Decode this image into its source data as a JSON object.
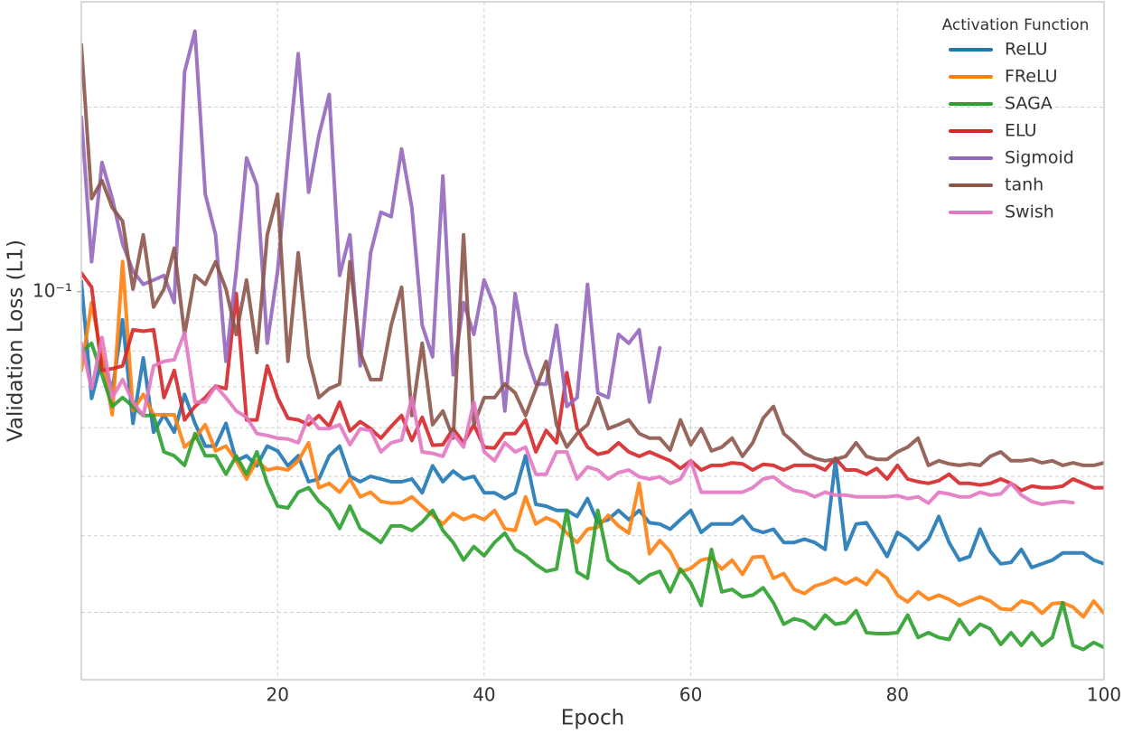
{
  "chart_data": {
    "type": "line",
    "xlabel": "Epoch",
    "ylabel": "Validation Loss (L1)",
    "legend_title": "Activation Function",
    "legend": "upper right",
    "yscale": "log",
    "grid": true,
    "xlim": [
      1,
      100
    ],
    "xticks": [
      20,
      40,
      60,
      80,
      100
    ],
    "ylim": [
      0.0233,
      0.297
    ],
    "yticks": [
      {
        "value": 0.1,
        "label": "10⁻¹"
      }
    ],
    "yminor": [
      0.03,
      0.04,
      0.05,
      0.06,
      0.07,
      0.08,
      0.09,
      0.2
    ],
    "x": [
      1,
      2,
      3,
      4,
      5,
      6,
      7,
      8,
      9,
      10,
      11,
      12,
      13,
      14,
      15,
      16,
      17,
      18,
      19,
      20,
      21,
      22,
      23,
      24,
      25,
      26,
      27,
      28,
      29,
      30,
      31,
      32,
      33,
      34,
      35,
      36,
      37,
      38,
      39,
      40,
      41,
      42,
      43,
      44,
      45,
      46,
      47,
      48,
      49,
      50,
      51,
      52,
      53,
      54,
      55,
      56,
      57,
      58,
      59,
      60,
      61,
      62,
      63,
      64,
      65,
      66,
      67,
      68,
      69,
      70,
      71,
      72,
      73,
      74,
      75,
      76,
      77,
      78,
      79,
      80,
      81,
      82,
      83,
      84,
      85,
      86,
      87,
      88,
      89,
      90,
      91,
      92,
      93,
      94,
      95,
      96,
      97,
      98,
      99,
      100
    ],
    "series": [
      {
        "name": "ReLU",
        "color": "#1f77b4",
        "values": [
          0.104,
          0.067,
          0.078,
          0.069,
          0.09,
          0.061,
          0.078,
          0.059,
          0.063,
          0.059,
          0.068,
          0.061,
          0.056,
          0.056,
          0.061,
          0.053,
          0.054,
          0.052,
          0.056,
          0.055,
          0.052,
          0.054,
          0.049,
          0.0495,
          0.054,
          0.056,
          0.05,
          0.049,
          0.05,
          0.0495,
          0.049,
          0.049,
          0.0495,
          0.047,
          0.052,
          0.049,
          0.051,
          0.0495,
          0.05,
          0.047,
          0.047,
          0.046,
          0.047,
          0.054,
          0.045,
          0.0447,
          0.044,
          0.044,
          0.043,
          0.046,
          0.042,
          0.0425,
          0.044,
          0.0425,
          0.044,
          0.042,
          0.0418,
          0.041,
          0.0425,
          0.044,
          0.0405,
          0.0418,
          0.0418,
          0.0418,
          0.043,
          0.041,
          0.0405,
          0.041,
          0.039,
          0.039,
          0.0395,
          0.039,
          0.038,
          0.053,
          0.038,
          0.0418,
          0.042,
          0.0395,
          0.037,
          0.0405,
          0.0395,
          0.038,
          0.0395,
          0.043,
          0.039,
          0.0365,
          0.037,
          0.041,
          0.0377,
          0.036,
          0.0362,
          0.038,
          0.0355,
          0.036,
          0.0365,
          0.0375,
          0.0375,
          0.0375,
          0.0365,
          0.036
        ]
      },
      {
        "name": "FReLU",
        "color": "#ff7f0e",
        "values": [
          0.0744,
          0.096,
          0.078,
          0.063,
          0.112,
          0.064,
          0.068,
          0.063,
          0.063,
          0.063,
          0.0558,
          0.0577,
          0.0607,
          0.055,
          0.056,
          0.053,
          0.0495,
          0.053,
          0.0512,
          0.0516,
          0.0512,
          0.053,
          0.0567,
          0.0479,
          0.0487,
          0.0471,
          0.0495,
          0.0463,
          0.0471,
          0.0455,
          0.0452,
          0.0453,
          0.0463,
          0.0447,
          0.0432,
          0.0418,
          0.0435,
          0.0425,
          0.0432,
          0.0425,
          0.044,
          0.0411,
          0.0408,
          0.0463,
          0.0418,
          0.0428,
          0.0421,
          0.0404,
          0.039,
          0.041,
          0.0413,
          0.0432,
          0.0415,
          0.0404,
          0.0487,
          0.0374,
          0.0393,
          0.0377,
          0.0349,
          0.0354,
          0.0365,
          0.0368,
          0.0353,
          0.0365,
          0.0346,
          0.0369,
          0.037,
          0.0341,
          0.0347,
          0.0327,
          0.0322,
          0.0331,
          0.0335,
          0.0341,
          0.0334,
          0.0341,
          0.0333,
          0.0351,
          0.0341,
          0.032,
          0.0312,
          0.0324,
          0.0315,
          0.032,
          0.0315,
          0.0308,
          0.0313,
          0.0318,
          0.0313,
          0.0304,
          0.0303,
          0.0313,
          0.031,
          0.0299,
          0.031,
          0.0311,
          0.0306,
          0.0295,
          0.0313,
          0.0299
        ]
      },
      {
        "name": "SAGA",
        "color": "#2ca02c",
        "values": [
          0.0796,
          0.0824,
          0.0732,
          0.065,
          0.0672,
          0.065,
          0.0628,
          0.0628,
          0.0548,
          0.054,
          0.0521,
          0.0587,
          0.054,
          0.054,
          0.0504,
          0.054,
          0.0504,
          0.0548,
          0.0487,
          0.0447,
          0.0444,
          0.0471,
          0.0479,
          0.0455,
          0.044,
          0.0411,
          0.0447,
          0.0411,
          0.0401,
          0.039,
          0.0415,
          0.0415,
          0.0408,
          0.0421,
          0.044,
          0.0408,
          0.039,
          0.0365,
          0.0384,
          0.0371,
          0.039,
          0.0404,
          0.038,
          0.0371,
          0.0359,
          0.035,
          0.0353,
          0.044,
          0.0349,
          0.0341,
          0.044,
          0.0365,
          0.0353,
          0.0347,
          0.0335,
          0.0345,
          0.035,
          0.0324,
          0.0353,
          0.0335,
          0.0308,
          0.038,
          0.0324,
          0.0327,
          0.0318,
          0.032,
          0.0329,
          0.0311,
          0.0287,
          0.0293,
          0.029,
          0.0282,
          0.0297,
          0.0287,
          0.0289,
          0.0302,
          0.0278,
          0.0277,
          0.0277,
          0.0278,
          0.0297,
          0.0273,
          0.0278,
          0.0273,
          0.0271,
          0.0292,
          0.0276,
          0.0287,
          0.0282,
          0.0266,
          0.0278,
          0.0265,
          0.0278,
          0.0265,
          0.0273,
          0.0311,
          0.0265,
          0.0261,
          0.0268,
          0.0263
        ]
      },
      {
        "name": "ELU",
        "color": "#d62728",
        "values": [
          0.1073,
          0.1017,
          0.0744,
          0.0749,
          0.0757,
          0.0867,
          0.0862,
          0.0867,
          0.0672,
          0.0744,
          0.0618,
          0.065,
          0.0672,
          0.0702,
          0.0695,
          0.0993,
          0.0618,
          0.0618,
          0.0757,
          0.0672,
          0.0622,
          0.0618,
          0.0607,
          0.0628,
          0.0603,
          0.0661,
          0.0593,
          0.0614,
          0.0598,
          0.0577,
          0.0603,
          0.0628,
          0.0572,
          0.0624,
          0.0562,
          0.0563,
          0.0598,
          0.0567,
          0.0607,
          0.0558,
          0.0556,
          0.0587,
          0.0587,
          0.0618,
          0.0548,
          0.0594,
          0.0567,
          0.0738,
          0.0598,
          0.0558,
          0.0543,
          0.0548,
          0.0567,
          0.0548,
          0.0539,
          0.0548,
          0.0539,
          0.053,
          0.0515,
          0.053,
          0.0512,
          0.0521,
          0.0521,
          0.0526,
          0.0524,
          0.0512,
          0.0523,
          0.0521,
          0.0512,
          0.0521,
          0.0521,
          0.0521,
          0.0512,
          0.0535,
          0.0512,
          0.0512,
          0.0504,
          0.0515,
          0.0495,
          0.0521,
          0.0495,
          0.049,
          0.0487,
          0.0492,
          0.0504,
          0.0487,
          0.0487,
          0.0484,
          0.0487,
          0.0495,
          0.0487,
          0.0474,
          0.0482,
          0.0479,
          0.0479,
          0.0482,
          0.0495,
          0.0487,
          0.0479,
          0.0479
        ]
      },
      {
        "name": "Sigmoid",
        "color": "#9467bd",
        "values": [
          0.1926,
          0.1119,
          0.1625,
          0.1418,
          0.1197,
          0.1081,
          0.1028,
          0.1045,
          0.1063,
          0.096,
          0.2283,
          0.266,
          0.1442,
          0.1238,
          0.077,
          0.1081,
          0.1653,
          0.1492,
          0.0824,
          0.1081,
          0.1653,
          0.2444,
          0.1453,
          0.1799,
          0.2097,
          0.1063,
          0.1238,
          0.0757,
          0.1157,
          0.1348,
          0.1325,
          0.1709,
          0.1371,
          0.0882,
          0.0783,
          0.1544,
          0.0732,
          0.096,
          0.0852,
          0.1045,
          0.0944,
          0.0639,
          0.0993,
          0.0796,
          0.0707,
          0.0707,
          0.0882,
          0.065,
          0.0672,
          0.1028,
          0.0684,
          0.0672,
          0.0852,
          0.0824,
          0.0867,
          0.0661,
          0.081,
          null,
          null,
          null,
          null,
          null,
          null,
          null,
          null,
          null,
          null,
          null,
          null,
          null,
          null,
          null,
          null,
          null,
          null,
          null,
          null,
          null,
          null,
          null,
          null,
          null,
          null,
          null,
          null,
          null,
          null,
          null,
          null,
          null,
          null,
          null,
          null,
          null,
          null,
          null,
          null,
          null,
          null,
          null
        ]
      },
      {
        "name": "tanh",
        "color": "#8c564b",
        "values": [
          0.2528,
          0.1418,
          0.1518,
          0.1371,
          0.1303,
          0.101,
          0.1238,
          0.0944,
          0.101,
          0.1177,
          0.0852,
          0.1063,
          0.1028,
          0.1119,
          0.101,
          0.0852,
          0.1045,
          0.0796,
          0.1238,
          0.1442,
          0.077,
          0.1157,
          0.0783,
          0.0672,
          0.0695,
          0.0707,
          0.1119,
          0.0796,
          0.0719,
          0.0719,
          0.0882,
          0.1017,
          0.0628,
          0.0824,
          0.0607,
          0.0639,
          0.0577,
          0.1238,
          0.0607,
          0.0672,
          0.0672,
          0.0707,
          0.0684,
          0.0628,
          0.0695,
          0.077,
          0.0607,
          0.0558,
          0.0587,
          0.0607,
          0.0672,
          0.0598,
          0.0607,
          0.0618,
          0.0587,
          0.0577,
          0.0577,
          0.0552,
          0.0618,
          0.0563,
          0.0598,
          0.055,
          0.0558,
          0.0577,
          0.0539,
          0.0567,
          0.0622,
          0.065,
          0.0587,
          0.0567,
          0.0545,
          0.0535,
          0.053,
          0.0533,
          0.0539,
          0.0567,
          0.0539,
          0.0533,
          0.0533,
          0.0548,
          0.0558,
          0.0577,
          0.0521,
          0.053,
          0.0524,
          0.0521,
          0.0524,
          0.0521,
          0.0539,
          0.0548,
          0.053,
          0.053,
          0.0533,
          0.0526,
          0.053,
          0.0521,
          0.0526,
          0.0521,
          0.0521,
          0.0526
        ]
      },
      {
        "name": "Swish",
        "color": "#e377c2",
        "values": [
          0.0824,
          0.0695,
          0.0842,
          0.0672,
          0.0719,
          0.0661,
          0.0628,
          0.0757,
          0.077,
          0.0775,
          0.0857,
          0.0661,
          0.0661,
          0.0702,
          0.0672,
          0.0639,
          0.0624,
          0.0587,
          0.0583,
          0.0577,
          0.0575,
          0.0567,
          0.0628,
          0.0598,
          0.0598,
          0.0607,
          0.0563,
          0.0598,
          0.0594,
          0.0548,
          0.0567,
          0.0573,
          0.0672,
          0.0548,
          0.0545,
          0.0539,
          0.0587,
          0.0558,
          0.0661,
          0.0548,
          0.053,
          0.0567,
          0.0548,
          0.0558,
          0.0504,
          0.0504,
          0.0548,
          0.0548,
          0.0495,
          0.0518,
          0.0512,
          0.0495,
          0.0507,
          0.0512,
          0.0499,
          0.0495,
          0.0499,
          0.0487,
          0.0495,
          0.053,
          0.0471,
          0.0471,
          0.0471,
          0.0471,
          0.0471,
          0.0479,
          0.0495,
          0.0499,
          0.0484,
          0.0474,
          0.0471,
          0.0463,
          0.0471,
          0.0466,
          0.0466,
          0.0463,
          0.0463,
          0.0463,
          0.0463,
          0.0465,
          0.046,
          0.0463,
          0.0452,
          0.0471,
          0.0468,
          0.0463,
          0.0463,
          0.0471,
          0.0466,
          0.0468,
          0.0487,
          0.0466,
          0.0455,
          0.045,
          0.0453,
          0.0455,
          0.0453,
          null,
          null,
          null
        ]
      }
    ]
  }
}
